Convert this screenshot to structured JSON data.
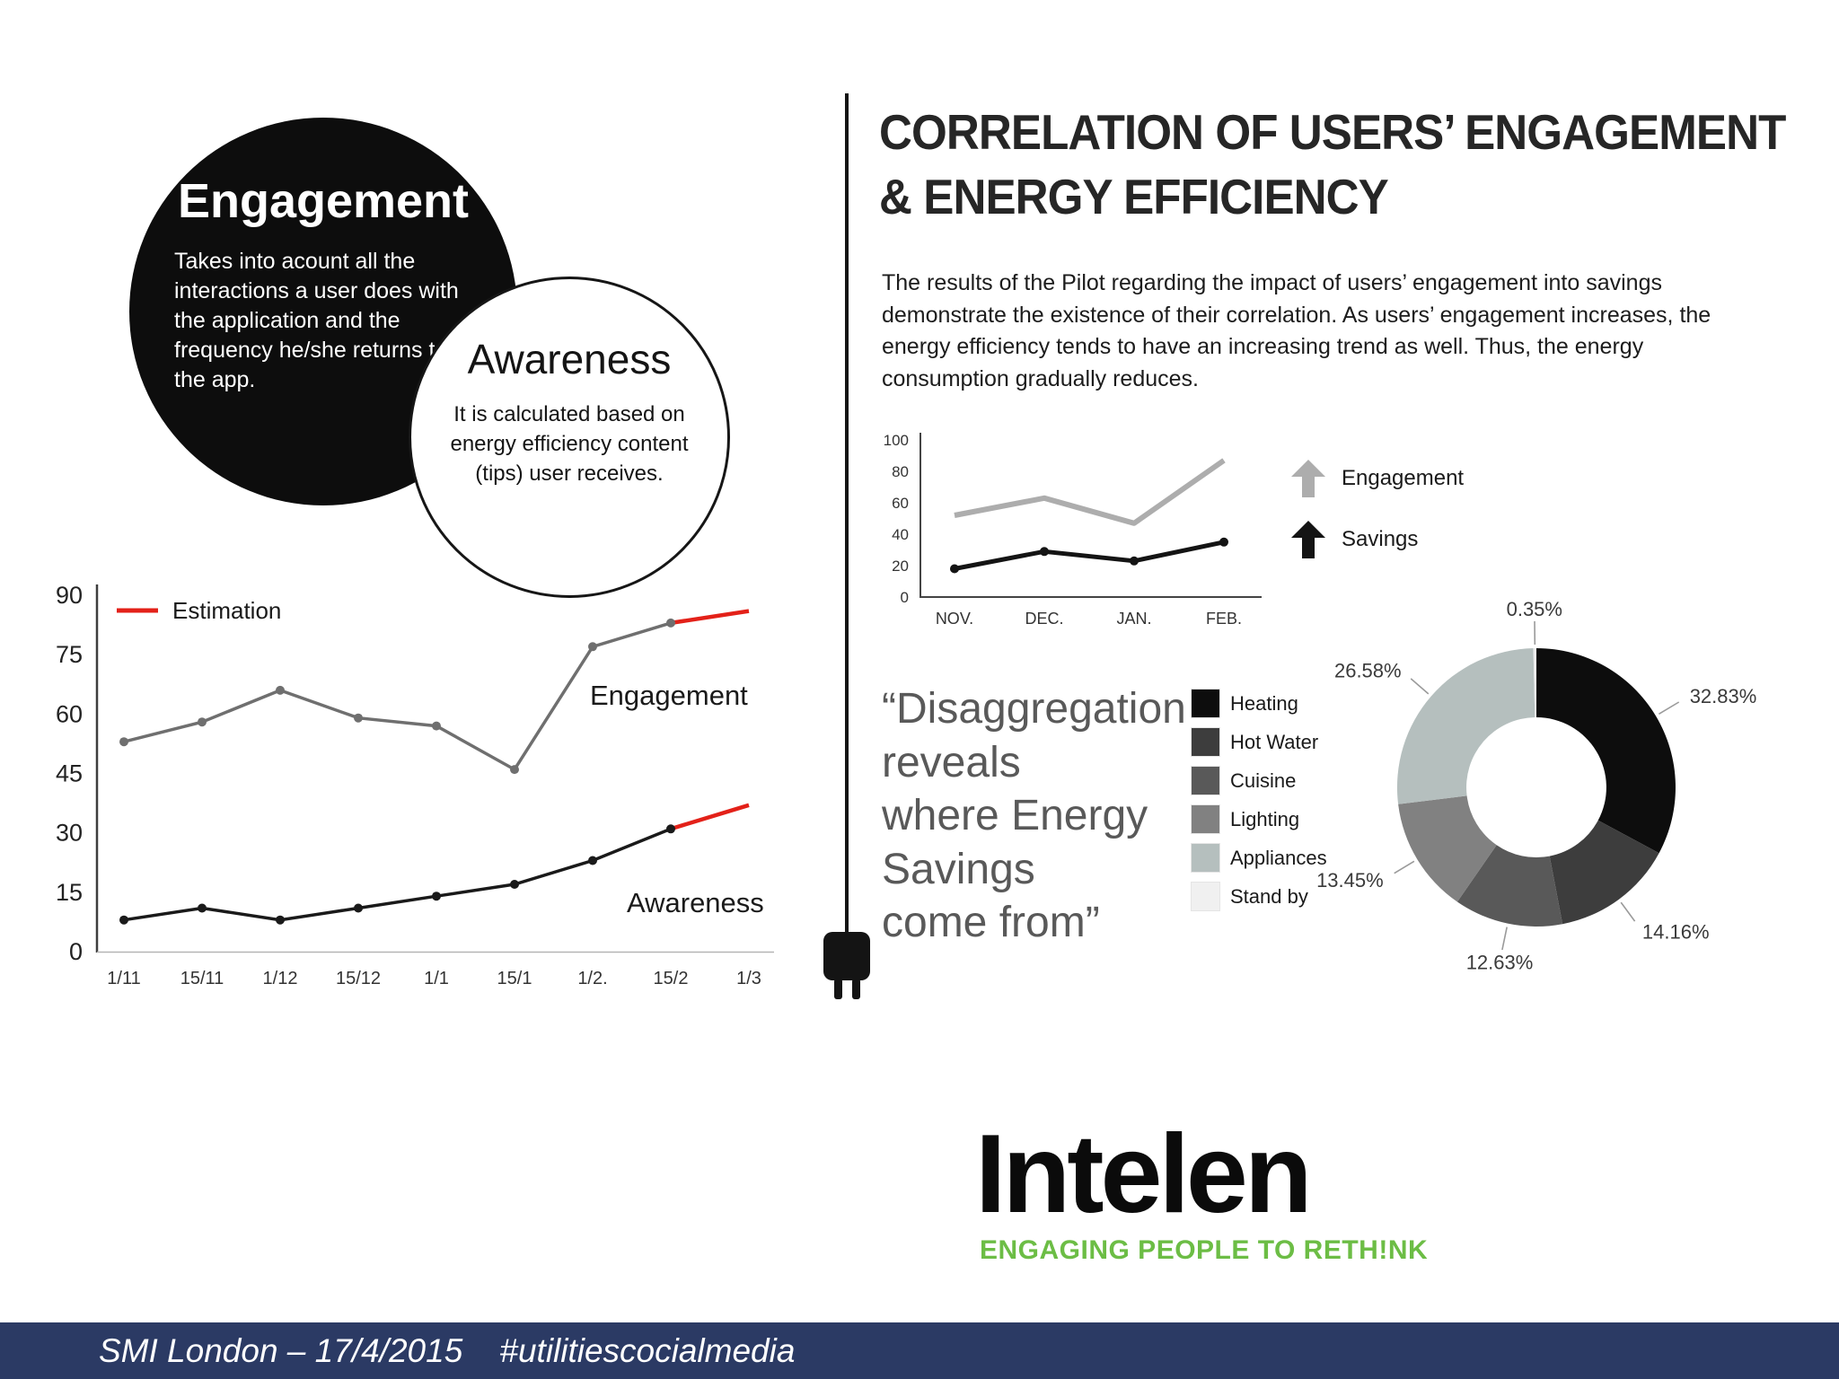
{
  "colors": {
    "estimation_red": "#e32119",
    "footer_bg": "#2b3a64",
    "logo_green": "#6cbd45",
    "quote_gray": "#595959"
  },
  "left_panel": {
    "engagement_bubble": {
      "title": "Engagement",
      "body": "Takes into acount all the interactions a user does with the application and the frequency he/she returns to the app."
    },
    "awareness_bubble": {
      "title": "Awareness",
      "body": "It is calculated based on energy efficiency content (tips) user receives."
    }
  },
  "right_panel": {
    "title_line1": "CORRELATION OF USERS’ ENGAGEMENT",
    "title_line2": "& ENERGY EFFICIENCY",
    "paragraph": "The results of the Pilot regarding the impact of users’ engagement into savings demonstrate the existence of their correlation. As users’ engagement increases, the energy efficiency tends to have an increasing trend as well. Thus, the energy consumption gradually reduces.",
    "quote_lines": [
      "“Disaggregation",
      "reveals",
      "where Energy",
      "Savings",
      "come from”"
    ]
  },
  "logo": {
    "name": "Intelen",
    "tagline": "ENGAGING PEOPLE TO RETH!NK"
  },
  "footer": {
    "text": "SMI London – 17/4/2015    #utilitiescocialmedia"
  },
  "chart_data": [
    {
      "id": "engagement-awareness-trend",
      "type": "line",
      "categories": [
        "1/11",
        "15/11",
        "1/12",
        "15/12",
        "1/1",
        "15/1",
        "1/2.",
        "15/2",
        "1/3"
      ],
      "ylim": [
        0,
        90
      ],
      "yticks": [
        0,
        15,
        30,
        45,
        60,
        75,
        90
      ],
      "grid": false,
      "legend": [
        {
          "label": "Estimation",
          "color": "#e32119"
        }
      ],
      "series": [
        {
          "name": "Engagement",
          "color": "#6f6f6f",
          "values": [
            53,
            58,
            66,
            59,
            57,
            46,
            77,
            83
          ],
          "estimation_value": 86
        },
        {
          "name": "Awareness",
          "color": "#1a1a1a",
          "values": [
            8,
            11,
            8,
            11,
            14,
            17,
            23,
            31
          ],
          "estimation_value": 37
        }
      ]
    },
    {
      "id": "monthly-engagement-savings",
      "type": "line",
      "categories": [
        "NOV.",
        "DEC.",
        "JAN.",
        "FEB."
      ],
      "ylim": [
        0,
        100
      ],
      "yticks": [
        0,
        20,
        40,
        60,
        80,
        100
      ],
      "legend_position": "right",
      "series": [
        {
          "name": "Engagement",
          "color": "#adadad",
          "values": [
            52,
            63,
            47,
            87
          ]
        },
        {
          "name": "Savings",
          "color": "#141414",
          "values": [
            18,
            29,
            23,
            35
          ]
        }
      ]
    },
    {
      "id": "disaggregation-donut",
      "type": "pie",
      "donut": true,
      "labels": [
        "Heating",
        "Hot Water",
        "Cuisine",
        "Lighting",
        "Appliances",
        "Stand by"
      ],
      "values": [
        32.83,
        14.16,
        12.63,
        13.45,
        26.58,
        0.35
      ],
      "value_labels": [
        "32.83%",
        "14.16%",
        "12.63%",
        "13.45%",
        "26.58%",
        "0.35%"
      ],
      "colors": [
        "#0d0d0d",
        "#3d3d3d",
        "#595959",
        "#818181",
        "#b5bfbe",
        "#f0f0f0"
      ]
    }
  ]
}
